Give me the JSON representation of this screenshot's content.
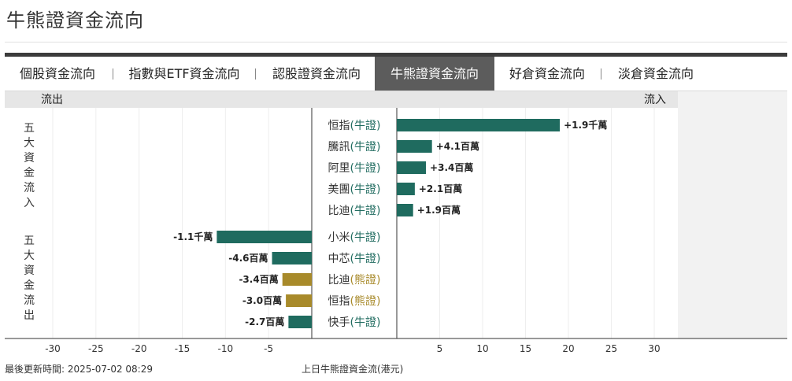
{
  "page": {
    "title": "牛熊證資金流向"
  },
  "tabs": [
    {
      "label": "個股資金流向",
      "active": false
    },
    {
      "label": "指數與ETF資金流向",
      "active": false
    },
    {
      "label": "認股證資金流向",
      "active": false
    },
    {
      "label": "牛熊證資金流向",
      "active": true
    },
    {
      "label": "好倉資金流向",
      "active": false
    },
    {
      "label": "淡倉資金流向",
      "active": false
    }
  ],
  "side_labels": {
    "inflow": "五大資金流入",
    "outflow": "五大資金流出"
  },
  "colors": {
    "bull": "#1f6b5f",
    "bear": "#a88a2a",
    "grid": "#eeeeee",
    "band": "#e6e6e6",
    "right_panel": "#f2f2f2"
  },
  "chart_data": {
    "type": "bar",
    "orientation": "horizontal",
    "header_left": "流出",
    "header_right": "流入",
    "unit_caption": "上日牛熊證資金流(港元)",
    "x_ticks": [
      -30,
      -25,
      -20,
      -15,
      -10,
      -5,
      5,
      10,
      15,
      20,
      25,
      30
    ],
    "xlim": [
      -30,
      30
    ],
    "inflow": [
      {
        "name": "恒指",
        "tag": "牛證",
        "type": "bull",
        "value": 19,
        "label": "+1.9千萬"
      },
      {
        "name": "騰訊",
        "tag": "牛證",
        "type": "bull",
        "value": 4.1,
        "label": "+4.1百萬"
      },
      {
        "name": "阿里",
        "tag": "牛證",
        "type": "bull",
        "value": 3.4,
        "label": "+3.4百萬"
      },
      {
        "name": "美團",
        "tag": "牛證",
        "type": "bull",
        "value": 2.1,
        "label": "+2.1百萬"
      },
      {
        "name": "比迪",
        "tag": "牛證",
        "type": "bull",
        "value": 1.9,
        "label": "+1.9百萬"
      }
    ],
    "outflow": [
      {
        "name": "小米",
        "tag": "牛證",
        "type": "bull",
        "value": -11,
        "label": "-1.1千萬"
      },
      {
        "name": "中芯",
        "tag": "牛證",
        "type": "bull",
        "value": -4.6,
        "label": "-4.6百萬"
      },
      {
        "name": "比迪",
        "tag": "熊證",
        "type": "bear",
        "value": -3.4,
        "label": "-3.4百萬"
      },
      {
        "name": "恒指",
        "tag": "熊證",
        "type": "bear",
        "value": -3.0,
        "label": "-3.0百萬"
      },
      {
        "name": "快手",
        "tag": "牛證",
        "type": "bull",
        "value": -2.7,
        "label": "-2.7百萬"
      }
    ]
  },
  "footer": {
    "updated_label": "最後更新時間: 2025-07-02 08:29",
    "caption": "上日牛熊證資金流(港元)"
  }
}
